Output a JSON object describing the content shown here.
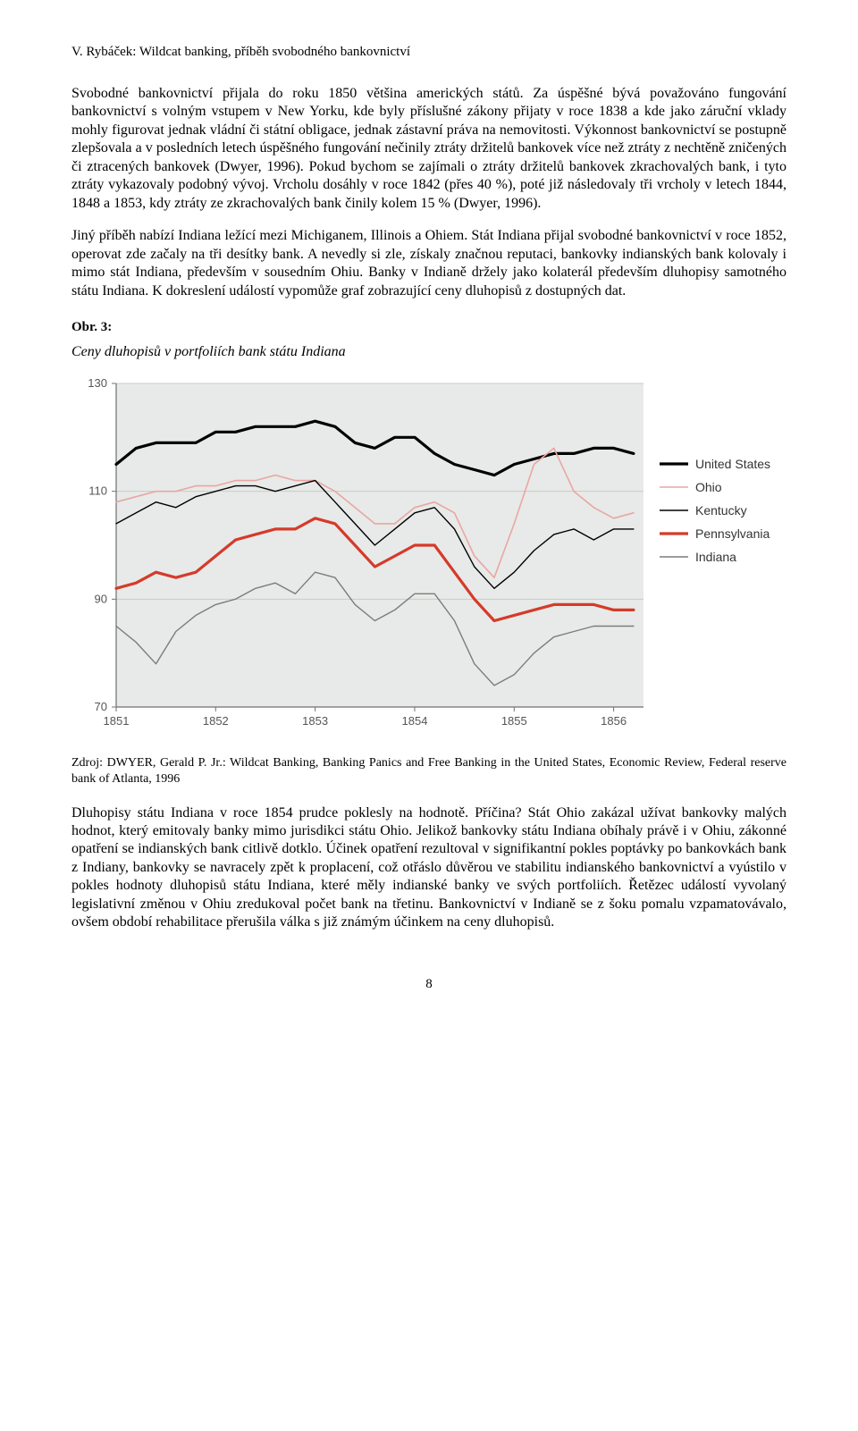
{
  "header": "V. Rybáček: Wildcat banking, příběh svobodného bankovnictví",
  "para1": "Svobodné bankovnictví přijala do roku 1850 většina amerických států. Za úspěšné bývá považováno fungování bankovnictví s volným vstupem v New Yorku, kde byly příslušné zákony přijaty v roce 1838 a kde jako záruční vklady mohly figurovat jednak vládní či státní obligace, jednak zástavní práva na nemovitosti. Výkonnost bankovnictví se postupně zlepšovala a v posledních letech úspěšného fungování nečinily ztráty držitelů bankovek více než ztráty z nechtěně zničených či ztracených bankovek (Dwyer, 1996). Pokud bychom se zajímali o ztráty držitelů bankovek zkrachovalých bank, i tyto ztráty vykazovaly podobný vývoj. Vrcholu dosáhly v roce 1842 (přes 40 %), poté již následovaly tři vrcholy v letech 1844, 1848 a 1853, kdy ztráty ze zkrachovalých bank činily kolem 15 % (Dwyer, 1996).",
  "para2": "Jiný příběh nabízí Indiana ležící mezi Michiganem, Illinois a Ohiem. Stát Indiana přijal svobodné bankovnictví v roce 1852, operovat zde začaly na tři desítky bank. A nevedly si zle, získaly značnou reputaci, bankovky indianských bank kolovaly i mimo stát Indiana, především v sousedním Ohiu. Banky v Indianě držely jako kolaterál především dluhopisy samotného státu Indiana. K dokreslení událostí vypomůže graf zobrazující ceny dluhopisů z dostupných dat.",
  "fig_label": "Obr. 3:",
  "fig_title": "Ceny dluhopisů v portfoliích bank státu Indiana",
  "source": "Zdroj: DWYER, Gerald P. Jr.: Wildcat Banking, Banking Panics and Free Banking in the United States, Economic Review, Federal reserve bank of Atlanta, 1996",
  "para3": "Dluhopisy státu Indiana v roce 1854 prudce poklesly na hodnotě. Příčina? Stát Ohio zakázal užívat bankovky malých hodnot, který emitovaly banky mimo jurisdikci státu Ohio. Jelikož bankovky státu Indiana obíhaly právě i v Ohiu, zákonné opatření se indianských bank citlivě dotklo. Účinek opatření rezultoval v signifikantní pokles poptávky po bankovkách bank z Indiany, bankovky se navracely zpět k proplacení, což otřáslo důvěrou ve stabilitu indianského bankovnictví a vyústilo v pokles hodnoty dluhopisů státu Indiana, které měly indianské banky ve svých portfoliích. Řetězec událostí vyvolaný legislativní změnou v Ohiu zredukoval počet bank na třetinu. Bankovnictví v Indianě se z šoku pomalu vzpamatovávalo, ovšem období rehabilitace přerušila válka s již známým účinkem na ceny dluhopisů.",
  "page_number": "8",
  "chart": {
    "type": "line",
    "background_color": "#e7eae8",
    "grid_color": "#c8ccc9",
    "axis_color": "#6f726f",
    "tick_fontsize": 13,
    "tick_color": "#555555",
    "ylim": [
      70,
      130
    ],
    "yticks": [
      70,
      90,
      110,
      130
    ],
    "xticks": [
      1851,
      1852,
      1853,
      1854,
      1855,
      1856
    ],
    "x_domain": [
      1851,
      1856.3
    ],
    "legend_fontsize": 14,
    "legend_text_color": "#333333",
    "series": [
      {
        "name": "United States",
        "color": "#000000",
        "width": 3.2,
        "points": [
          [
            1851,
            115
          ],
          [
            1851.2,
            118
          ],
          [
            1851.4,
            119
          ],
          [
            1851.6,
            119
          ],
          [
            1851.8,
            119
          ],
          [
            1852,
            121
          ],
          [
            1852.2,
            121
          ],
          [
            1852.4,
            122
          ],
          [
            1852.6,
            122
          ],
          [
            1852.8,
            122
          ],
          [
            1853,
            123
          ],
          [
            1853.2,
            122
          ],
          [
            1853.4,
            119
          ],
          [
            1853.6,
            118
          ],
          [
            1853.8,
            120
          ],
          [
            1854,
            120
          ],
          [
            1854.2,
            117
          ],
          [
            1854.4,
            115
          ],
          [
            1854.6,
            114
          ],
          [
            1854.8,
            113
          ],
          [
            1855,
            115
          ],
          [
            1855.2,
            116
          ],
          [
            1855.4,
            117
          ],
          [
            1855.6,
            117
          ],
          [
            1855.8,
            118
          ],
          [
            1856,
            118
          ],
          [
            1856.2,
            117
          ]
        ]
      },
      {
        "name": "Ohio",
        "color": "#e9a6a3",
        "width": 1.6,
        "points": [
          [
            1851,
            108
          ],
          [
            1851.2,
            109
          ],
          [
            1851.4,
            110
          ],
          [
            1851.6,
            110
          ],
          [
            1851.8,
            111
          ],
          [
            1852,
            111
          ],
          [
            1852.2,
            112
          ],
          [
            1852.4,
            112
          ],
          [
            1852.6,
            113
          ],
          [
            1852.8,
            112
          ],
          [
            1853,
            112
          ],
          [
            1853.2,
            110
          ],
          [
            1853.4,
            107
          ],
          [
            1853.6,
            104
          ],
          [
            1853.8,
            104
          ],
          [
            1854,
            107
          ],
          [
            1854.2,
            108
          ],
          [
            1854.4,
            106
          ],
          [
            1854.6,
            98
          ],
          [
            1854.8,
            94
          ],
          [
            1855,
            104
          ],
          [
            1855.2,
            115
          ],
          [
            1855.4,
            118
          ],
          [
            1855.6,
            110
          ],
          [
            1855.8,
            107
          ],
          [
            1856,
            105
          ],
          [
            1856.2,
            106
          ]
        ]
      },
      {
        "name": "Kentucky",
        "color": "#000000",
        "width": 1.4,
        "points": [
          [
            1851,
            104
          ],
          [
            1851.2,
            106
          ],
          [
            1851.4,
            108
          ],
          [
            1851.6,
            107
          ],
          [
            1851.8,
            109
          ],
          [
            1852,
            110
          ],
          [
            1852.2,
            111
          ],
          [
            1852.4,
            111
          ],
          [
            1852.6,
            110
          ],
          [
            1852.8,
            111
          ],
          [
            1853,
            112
          ],
          [
            1853.2,
            108
          ],
          [
            1853.4,
            104
          ],
          [
            1853.6,
            100
          ],
          [
            1853.8,
            103
          ],
          [
            1854,
            106
          ],
          [
            1854.2,
            107
          ],
          [
            1854.4,
            103
          ],
          [
            1854.6,
            96
          ],
          [
            1854.8,
            92
          ],
          [
            1855,
            95
          ],
          [
            1855.2,
            99
          ],
          [
            1855.4,
            102
          ],
          [
            1855.6,
            103
          ],
          [
            1855.8,
            101
          ],
          [
            1856,
            103
          ],
          [
            1856.2,
            103
          ]
        ]
      },
      {
        "name": "Pennsylvania",
        "color": "#d63a2a",
        "width": 3.2,
        "points": [
          [
            1851,
            92
          ],
          [
            1851.2,
            93
          ],
          [
            1851.4,
            95
          ],
          [
            1851.6,
            94
          ],
          [
            1851.8,
            95
          ],
          [
            1852,
            98
          ],
          [
            1852.2,
            101
          ],
          [
            1852.4,
            102
          ],
          [
            1852.6,
            103
          ],
          [
            1852.8,
            103
          ],
          [
            1853,
            105
          ],
          [
            1853.2,
            104
          ],
          [
            1853.4,
            100
          ],
          [
            1853.6,
            96
          ],
          [
            1853.8,
            98
          ],
          [
            1854,
            100
          ],
          [
            1854.2,
            100
          ],
          [
            1854.4,
            95
          ],
          [
            1854.6,
            90
          ],
          [
            1854.8,
            86
          ],
          [
            1855,
            87
          ],
          [
            1855.2,
            88
          ],
          [
            1855.4,
            89
          ],
          [
            1855.6,
            89
          ],
          [
            1855.8,
            89
          ],
          [
            1856,
            88
          ],
          [
            1856.2,
            88
          ]
        ]
      },
      {
        "name": "Indiana",
        "color": "#7b7d79",
        "width": 1.4,
        "points": [
          [
            1851,
            85
          ],
          [
            1851.2,
            82
          ],
          [
            1851.4,
            78
          ],
          [
            1851.6,
            84
          ],
          [
            1851.8,
            87
          ],
          [
            1852,
            89
          ],
          [
            1852.2,
            90
          ],
          [
            1852.4,
            92
          ],
          [
            1852.6,
            93
          ],
          [
            1852.8,
            91
          ],
          [
            1853,
            95
          ],
          [
            1853.2,
            94
          ],
          [
            1853.4,
            89
          ],
          [
            1853.6,
            86
          ],
          [
            1853.8,
            88
          ],
          [
            1854,
            91
          ],
          [
            1854.2,
            91
          ],
          [
            1854.4,
            86
          ],
          [
            1854.6,
            78
          ],
          [
            1854.8,
            74
          ],
          [
            1855,
            76
          ],
          [
            1855.2,
            80
          ],
          [
            1855.4,
            83
          ],
          [
            1855.6,
            84
          ],
          [
            1855.8,
            85
          ],
          [
            1856,
            85
          ],
          [
            1856.2,
            85
          ]
        ]
      }
    ]
  }
}
